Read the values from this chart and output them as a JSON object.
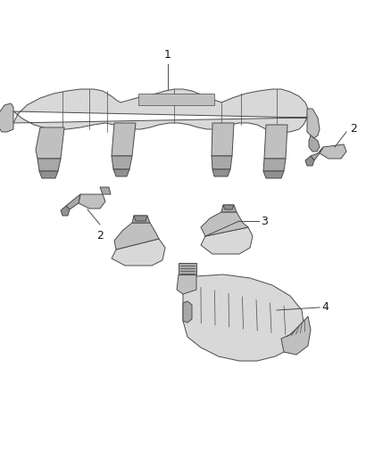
{
  "background_color": "#ffffff",
  "figsize": [
    4.38,
    5.33
  ],
  "dpi": 100,
  "line_color": "#4a4a4a",
  "fill_light": "#d8d8d8",
  "fill_mid": "#c0c0c0",
  "fill_dark": "#a8a8a8",
  "fill_darker": "#909090",
  "text_color": "#1a1a1a",
  "font_size": 9,
  "lw_main": 0.7,
  "lw_detail": 0.5
}
